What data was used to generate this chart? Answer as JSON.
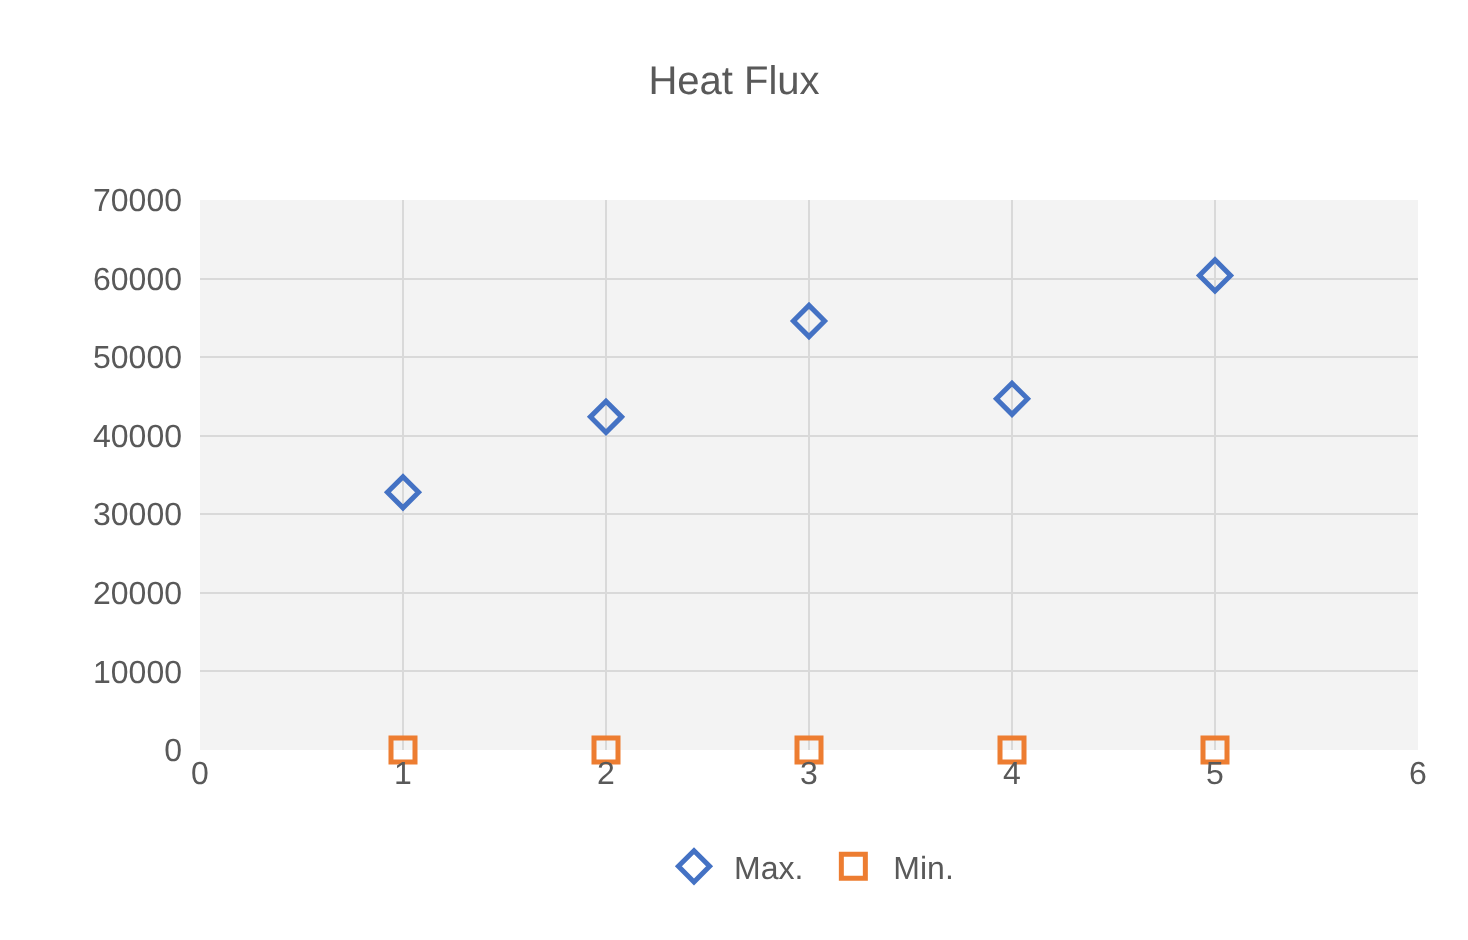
{
  "chart_data": {
    "type": "scatter",
    "title": "Heat Flux",
    "x": [
      1,
      2,
      3,
      4,
      5
    ],
    "series": [
      {
        "name": "Max.",
        "color": "#4472c4",
        "marker": "diamond",
        "values": [
          32800,
          42400,
          54600,
          44700,
          60400
        ]
      },
      {
        "name": "Min.",
        "color": "#ed7d31",
        "marker": "square",
        "values": [
          0,
          0,
          0,
          0,
          0
        ]
      }
    ],
    "xlim": [
      0,
      6
    ],
    "xticks": [
      0,
      1,
      2,
      3,
      4,
      5,
      6
    ],
    "ylim": [
      0,
      70000
    ],
    "yticks": [
      0,
      10000,
      20000,
      30000,
      40000,
      50000,
      60000,
      70000
    ],
    "grid": true,
    "legend": "bottom"
  }
}
